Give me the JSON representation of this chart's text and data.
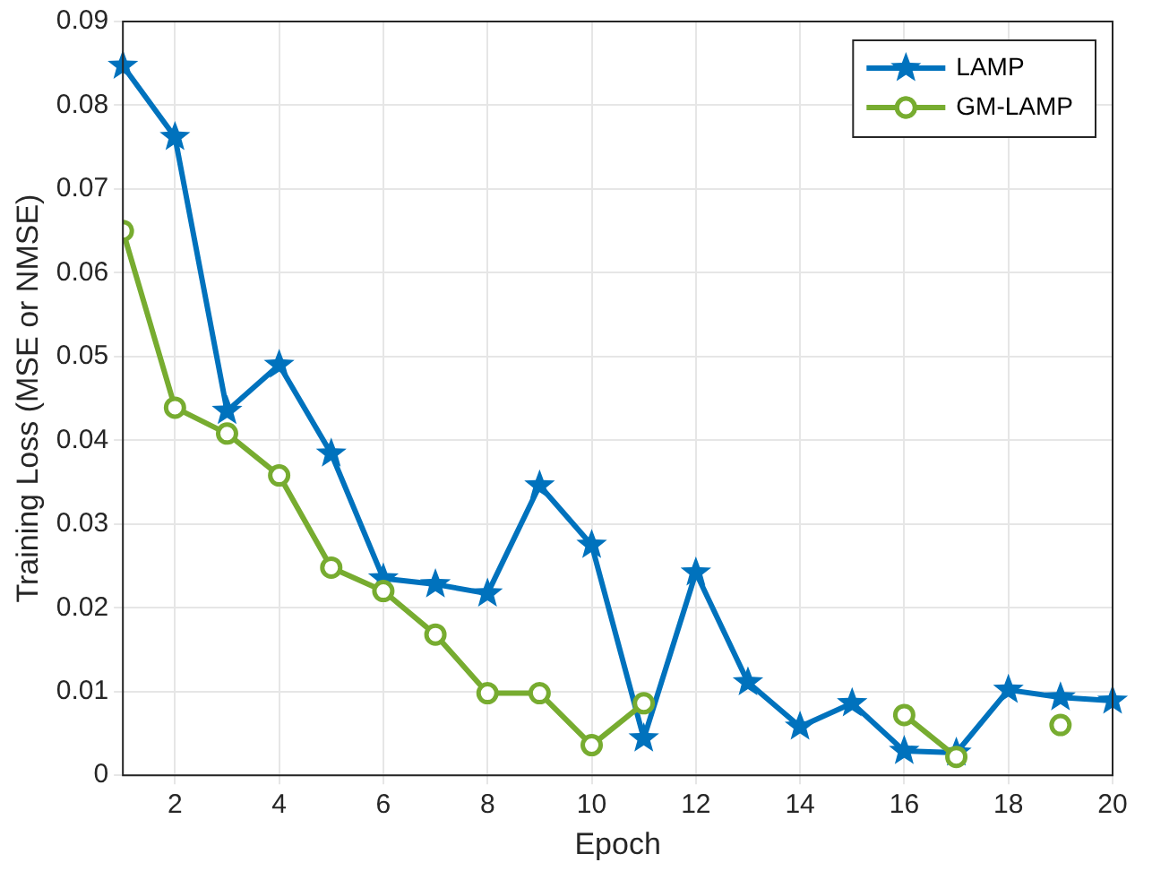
{
  "chart_data": {
    "type": "line",
    "xlabel": "Epoch",
    "ylabel": "Training Loss (MSE or NMSE)",
    "x": [
      1,
      2,
      3,
      4,
      5,
      6,
      7,
      8,
      9,
      10,
      11,
      12,
      13,
      14,
      15,
      16,
      17,
      18,
      19,
      20
    ],
    "series": [
      {
        "name": "LAMP",
        "color": "#0072bd",
        "marker": "star",
        "values": [
          0.0847,
          0.0762,
          0.0435,
          0.049,
          0.0384,
          0.0235,
          0.0228,
          0.0217,
          0.0346,
          0.0275,
          0.0044,
          0.0242,
          0.0111,
          0.0058,
          0.0086,
          0.0029,
          0.0027,
          0.0102,
          0.0093,
          0.0089
        ]
      },
      {
        "name": "GM-LAMP",
        "color": "#77ac30",
        "marker": "circle",
        "values": [
          0.065,
          0.0439,
          0.0408,
          0.0358,
          0.0248,
          0.022,
          0.0168,
          0.0098,
          0.0098,
          0.0036,
          0.0086,
          null,
          null,
          null,
          null,
          0.0072,
          0.0022,
          null,
          0.006,
          null
        ]
      }
    ],
    "xlim": [
      1,
      20
    ],
    "xticks": [
      2,
      4,
      6,
      8,
      10,
      12,
      14,
      16,
      18,
      20
    ],
    "ylim": [
      0,
      0.09
    ],
    "yticks": [
      0,
      0.01,
      0.02,
      0.03,
      0.04,
      0.05,
      0.06,
      0.07,
      0.08,
      0.09
    ],
    "grid": true,
    "legend": "top right",
    "line_style": "solid"
  }
}
